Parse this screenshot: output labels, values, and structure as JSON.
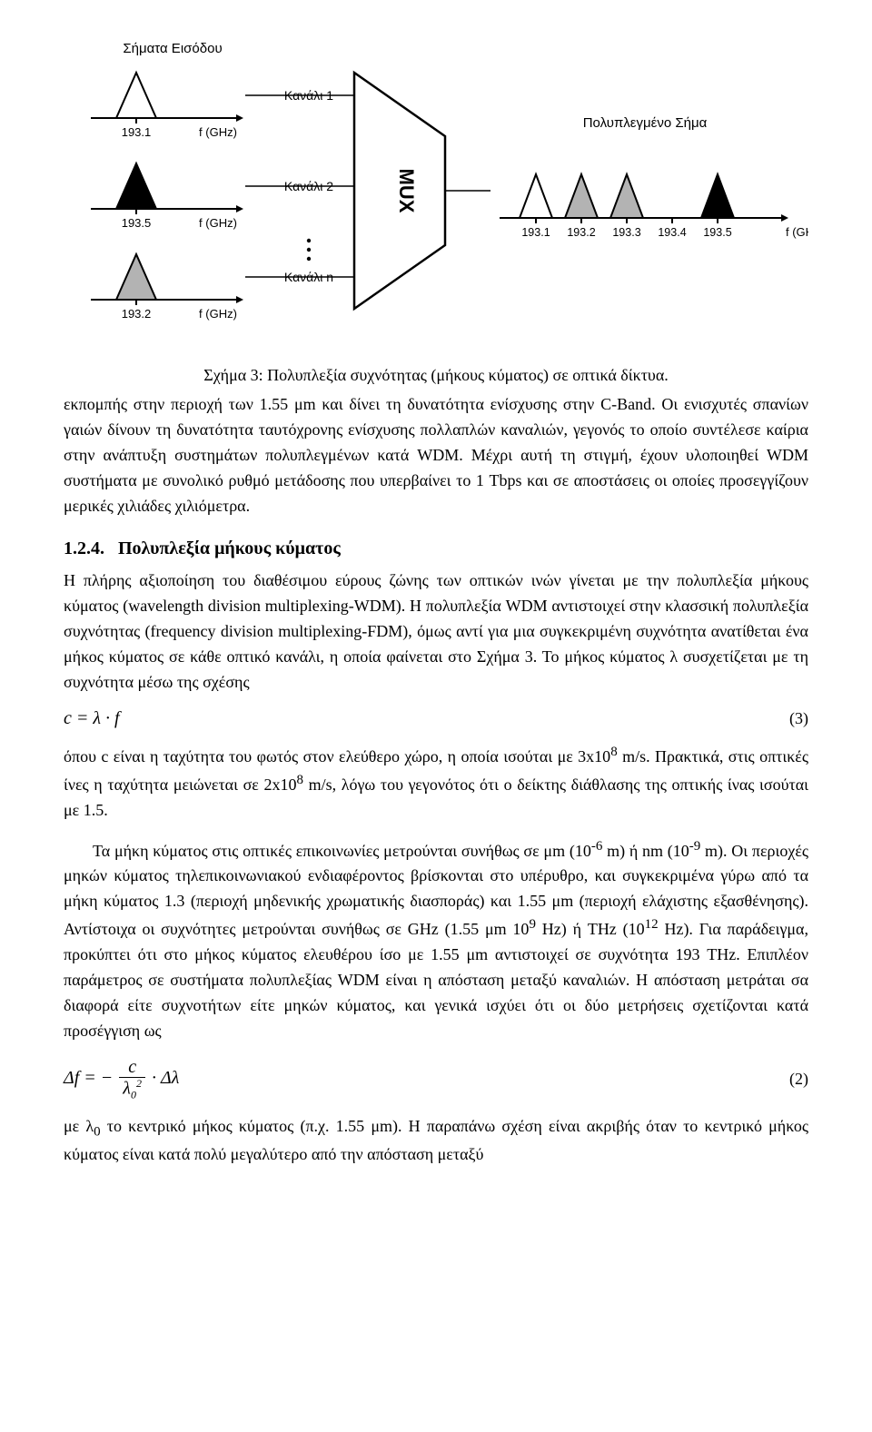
{
  "figure": {
    "inputs_label": "Σήματα Εισόδου",
    "output_label": "Πολυπλεγμένο Σήμα",
    "mux_label": "MUX",
    "channels": [
      {
        "label": "Κανάλι 1",
        "freq": "193.1",
        "axis": "f (GHz)",
        "fill": "#ffffff"
      },
      {
        "label": "Κανάλι 2",
        "freq": "193.5",
        "axis": "f (GHz)",
        "fill": "#000000"
      },
      {
        "label": "Κανάλι n",
        "freq": "193.2",
        "axis": "f (GHz)",
        "fill": "#b3b3b3"
      }
    ],
    "output_axis_label": "f (GHz)",
    "output_ticks": [
      "193.1",
      "193.2",
      "193.3",
      "193.4",
      "193.5"
    ],
    "output_peaks": [
      {
        "x": 0,
        "fill": "#ffffff"
      },
      {
        "x": 1,
        "fill": "#b3b3b3"
      },
      {
        "x": 2,
        "fill": "#b3b3b3"
      },
      {
        "x": 3,
        "fill": "none"
      },
      {
        "x": 4,
        "fill": "#000000"
      }
    ],
    "caption": "Σχήμα 3: Πολυπλεξία συχνότητας (μήκους κύματος) σε οπτικά δίκτυα.",
    "stroke": "#000000"
  },
  "para1": "εκπομπής στην περιοχή των 1.55 μm και δίνει τη δυνατότητα ενίσχυσης στην C-Band. Οι ενισχυτές σπανίων γαιών δίνουν τη δυνατότητα ταυτόχρονης ενίσχυσης πολλαπλών καναλιών, γεγονός το οποίο συντέλεσε καίρια στην ανάπτυξη συστημάτων πολυπλεγμένων κατά WDM. Μέχρι αυτή τη στιγμή, έχουν υλοποιηθεί WDM συστήματα με συνολικό ρυθμό μετάδοσης που υπερβαίνει το 1 Tbps και σε αποστάσεις οι οποίες προσεγγίζουν μερικές χιλιάδες χιλιόμετρα.",
  "section_number": "1.2.4.",
  "section_title": "Πολυπλεξία μήκους κύματος",
  "para2": "Η πλήρης αξιοποίηση του διαθέσιμου εύρους ζώνης των οπτικών ινών γίνεται με την πολυπλεξία μήκους κύματος (wavelength division multiplexing-WDM). Η πολυπλεξία WDM αντιστοιχεί στην κλασσική πολυπλεξία συχνότητας (frequency division multiplexing-FDM), όμως αντί για μια συγκεκριμένη συχνότητα ανατίθεται ένα μήκος κύματος σε κάθε οπτικό κανάλι, η οποία φαίνεται στο Σχήμα 3. Το μήκος κύματος λ συσχετίζεται με τη συχνότητα μέσω της σχέσης",
  "eq1_expr": "c = λ · f",
  "eq1_num": "(3)",
  "para3_a": "όπου c είναι η ταχύτητα του φωτός στον ελεύθερο χώρο, η οποία ισούται με 3x10",
  "para3_b": " m/s. Πρακτικά, στις οπτικές ίνες η ταχύτητα μειώνεται σε 2x10",
  "para3_c": " m/s, λόγω του γεγονότος ότι ο δείκτης διάθλασης της οπτικής ίνας ισούται με 1.5.",
  "sup8": "8",
  "para4_a": "Τα μήκη κύματος στις οπτικές επικοινωνίες μετρούνται συνήθως σε μm (10",
  "supm6": "-6",
  "para4_b": " m) ή nm (10",
  "supm9": "-9",
  "para4_c": " m). Οι περιοχές μηκών κύματος τηλεπικοινωνιακού ενδιαφέροντος βρίσκονται στο υπέρυθρο, και συγκεκριμένα γύρω από τα μήκη κύματος 1.3 (περιοχή μηδενικής χρωματικής διασποράς) και 1.55 μm (περιοχή ελάχιστης εξασθένησης). Αντίστοιχα οι συχνότητες μετρούνται συνήθως σε GHz (1.55 μm 10",
  "sup9": "9",
  "para4_d": " Hz) ή THz (10",
  "sup12": "12",
  "para4_e": " Hz). Για παράδειγμα, προκύπτει ότι στο μήκος κύματος ελευθέρου ίσο με 1.55 μm αντιστοιχεί σε συχνότητα 193 THz. Επιπλέον παράμετρος σε συστήματα πολυπλεξίας WDM είναι η απόσταση μεταξύ καναλιών. Η απόσταση μετράται σα διαφορά είτε συχνοτήτων είτε μηκών κύματος, και γενικά ισχύει ότι οι δύο μετρήσεις σχετίζονται κατά προσέγγιση ως",
  "eq2_lhs": "Δf = −",
  "eq2_num_frac": "c",
  "eq2_den_frac": "λ",
  "eq2_densub": "0",
  "eq2_denexp": "2",
  "eq2_rhs": " · Δλ",
  "eq2_label": "(2)",
  "para5_a": "με λ",
  "para5_sub": "0",
  "para5_b": " το κεντρικό μήκος κύματος (π.χ. 1.55 μm). Η παραπάνω σχέση είναι ακριβής όταν το κεντρικό μήκος κύματος είναι κατά πολύ μεγαλύτερο από την απόσταση μεταξύ"
}
